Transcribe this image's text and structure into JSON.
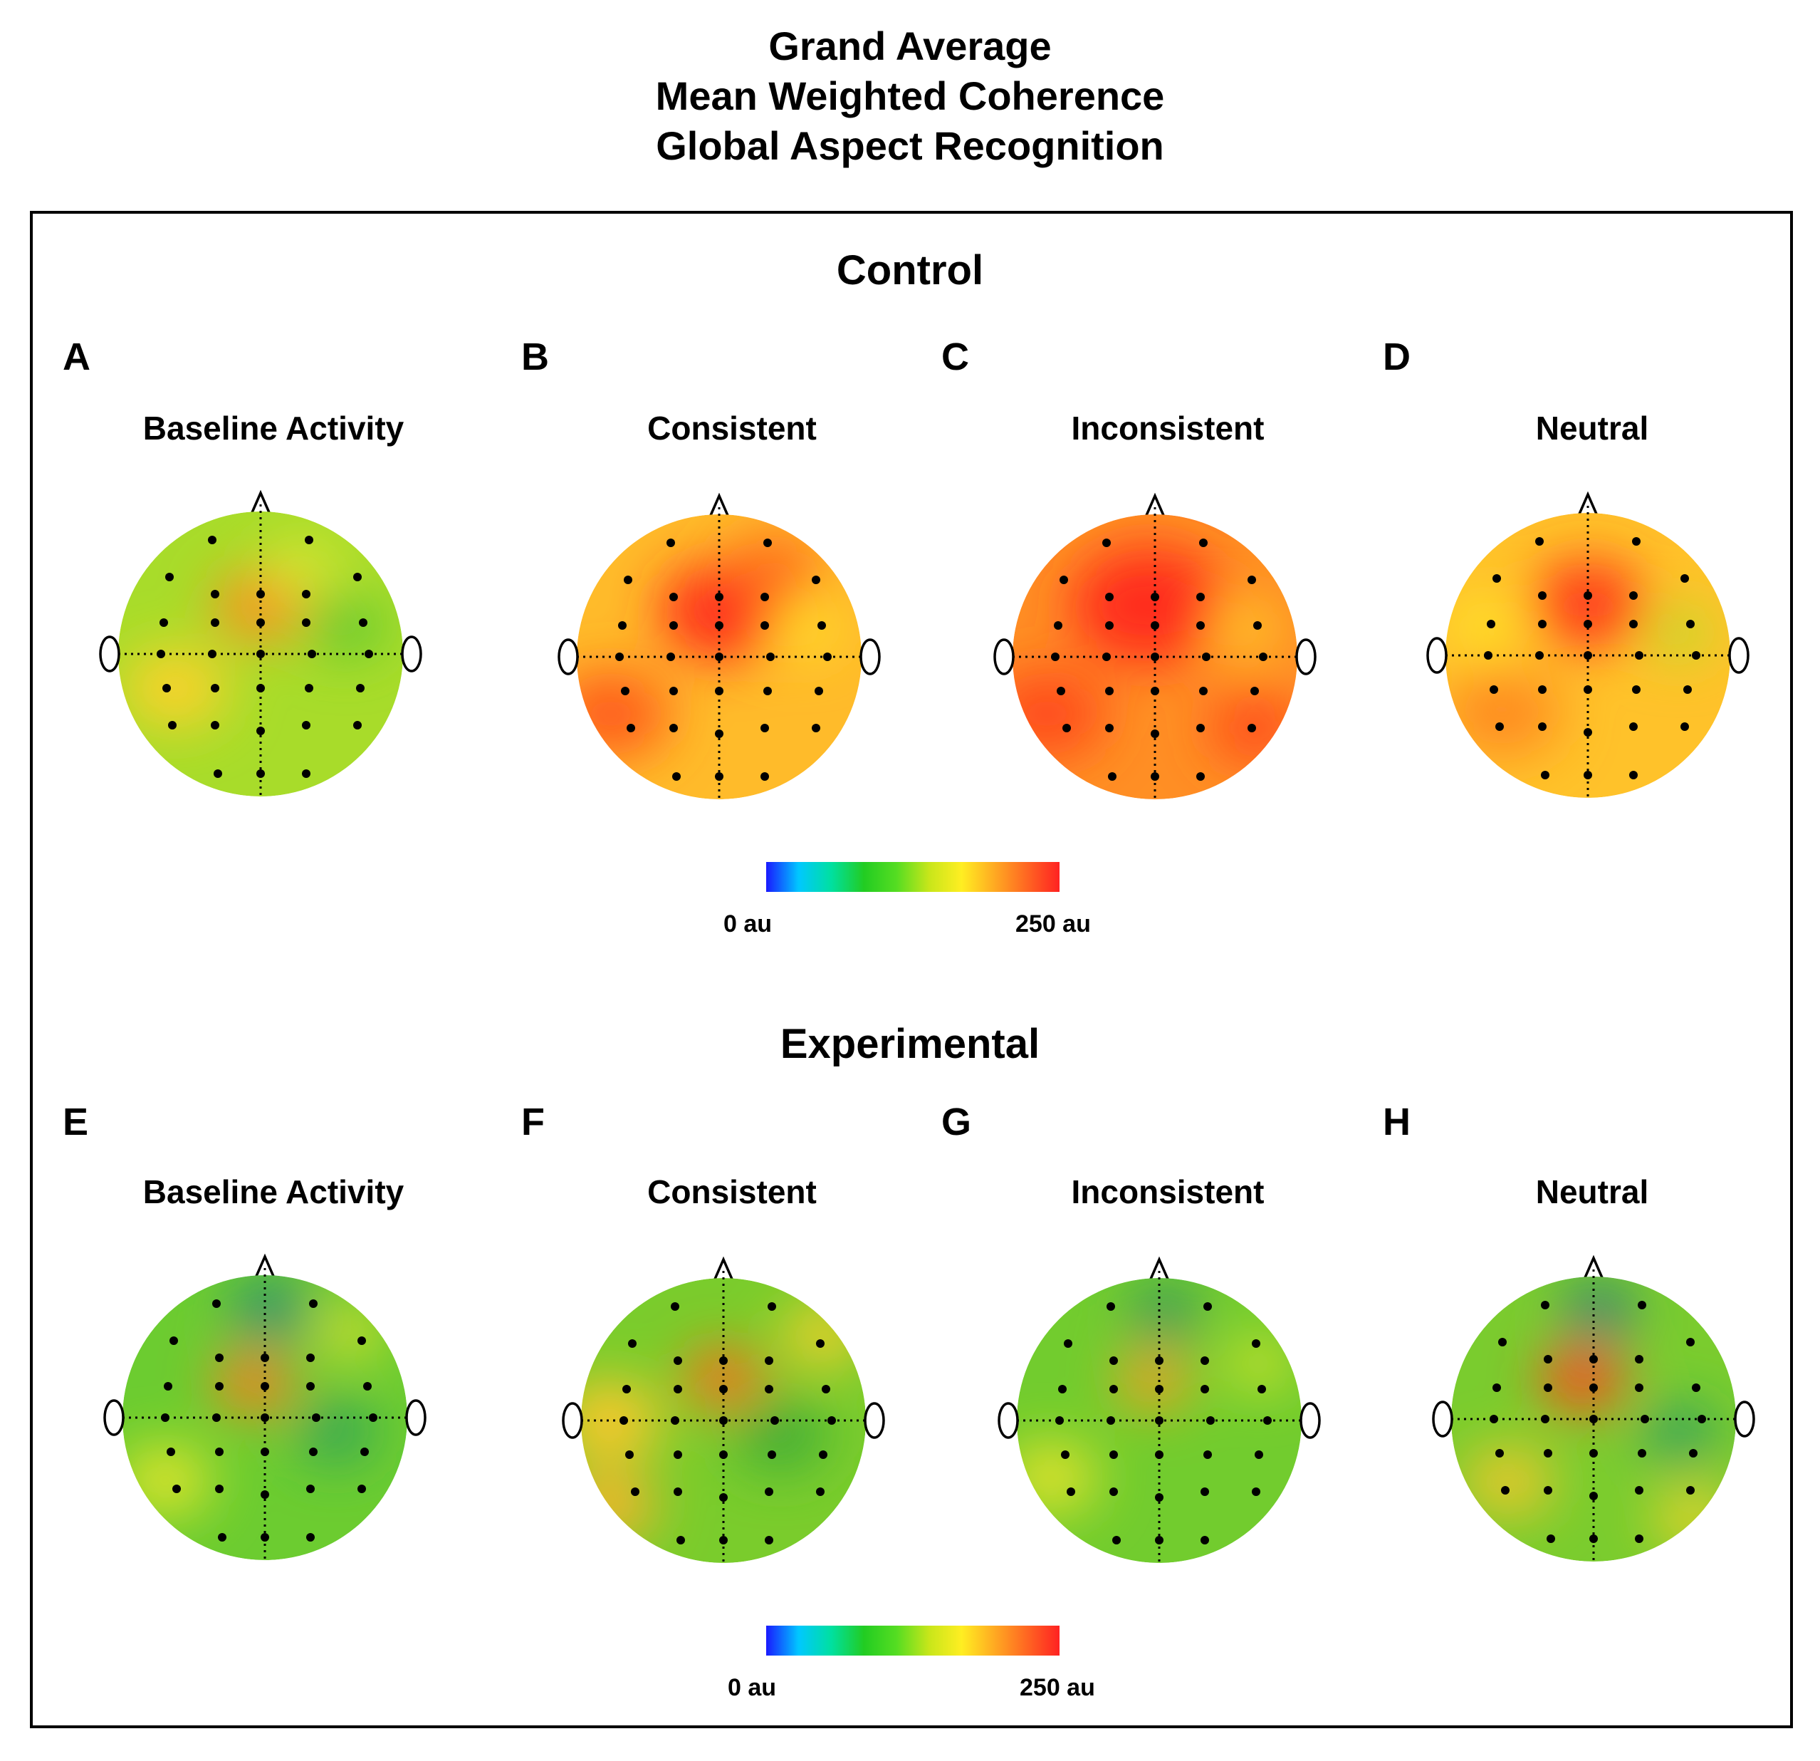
{
  "title_lines": [
    "Grand Average",
    "Mean Weighted Coherence",
    "Global Aspect Recognition"
  ],
  "groups": [
    {
      "name": "Control",
      "panels": [
        {
          "letter": "A",
          "label": "Baseline Activity"
        },
        {
          "letter": "B",
          "label": "Consistent"
        },
        {
          "letter": "C",
          "label": "Inconsistent"
        },
        {
          "letter": "D",
          "label": "Neutral"
        }
      ],
      "colorbar": {
        "min_label": "0 au",
        "max_label": "250 au"
      }
    },
    {
      "name": "Experimental",
      "panels": [
        {
          "letter": "E",
          "label": "Baseline Activity"
        },
        {
          "letter": "F",
          "label": "Consistent"
        },
        {
          "letter": "G",
          "label": "Inconsistent"
        },
        {
          "letter": "H",
          "label": "Neutral"
        }
      ],
      "colorbar": {
        "min_label": "0 au",
        "max_label": "250 au"
      }
    }
  ],
  "colormap": [
    "#1a1aff",
    "#00c8ff",
    "#00e0a0",
    "#22cc22",
    "#55dd22",
    "#c8e61a",
    "#ffee22",
    "#ffaa22",
    "#ff6622",
    "#ff2222"
  ],
  "headmap_colors": {
    "A": {
      "base": "#a8dc2a",
      "blobs": [
        [
          "#ff8c22",
          0.5,
          0.33,
          0.14
        ],
        [
          "#ffd22a",
          0.2,
          0.62,
          0.16
        ],
        [
          "#5cc832",
          0.8,
          0.4,
          0.12
        ],
        [
          "#d8e632",
          0.65,
          0.2,
          0.12
        ]
      ]
    },
    "B": {
      "base": "#ffbb2a",
      "blobs": [
        [
          "#ff2a1e",
          0.52,
          0.34,
          0.2
        ],
        [
          "#ff5a1e",
          0.12,
          0.7,
          0.18
        ],
        [
          "#ffe82a",
          0.8,
          0.4,
          0.1
        ],
        [
          "#ff6e1e",
          0.7,
          0.18,
          0.14
        ]
      ]
    },
    "C": {
      "base": "#ff8f24",
      "blobs": [
        [
          "#ff2a1e",
          0.48,
          0.32,
          0.24
        ],
        [
          "#ff4a1e",
          0.12,
          0.7,
          0.18
        ],
        [
          "#ffd82a",
          0.82,
          0.4,
          0.1
        ],
        [
          "#ff4a1e",
          0.85,
          0.75,
          0.14
        ]
      ]
    },
    "D": {
      "base": "#ffc22a",
      "blobs": [
        [
          "#ff3a1e",
          0.5,
          0.32,
          0.18
        ],
        [
          "#b8e02a",
          0.82,
          0.42,
          0.1
        ],
        [
          "#ff8a22",
          0.2,
          0.7,
          0.18
        ],
        [
          "#ffe42a",
          0.15,
          0.4,
          0.12
        ]
      ]
    },
    "E": {
      "base": "#6ccc30",
      "blobs": [
        [
          "#2a8a78",
          0.52,
          0.12,
          0.12
        ],
        [
          "#ff7a22",
          0.46,
          0.38,
          0.12
        ],
        [
          "#e6e62a",
          0.15,
          0.72,
          0.14
        ],
        [
          "#2fa05a",
          0.75,
          0.55,
          0.12
        ],
        [
          "#e6e02a",
          0.8,
          0.2,
          0.1
        ]
      ]
    },
    "F": {
      "base": "#7acc2c",
      "blobs": [
        [
          "#ff6a1e",
          0.5,
          0.35,
          0.12
        ],
        [
          "#ffc82a",
          0.1,
          0.5,
          0.16
        ],
        [
          "#ffd02a",
          0.85,
          0.2,
          0.12
        ],
        [
          "#ffb42a",
          0.1,
          0.8,
          0.14
        ],
        [
          "#3aaa38",
          0.7,
          0.55,
          0.14
        ]
      ]
    },
    "G": {
      "base": "#72cc2e",
      "blobs": [
        [
          "#2a8a6a",
          0.52,
          0.12,
          0.1
        ],
        [
          "#ff9a22",
          0.48,
          0.36,
          0.11
        ],
        [
          "#e8e42a",
          0.12,
          0.7,
          0.14
        ],
        [
          "#d8e42a",
          0.85,
          0.3,
          0.1
        ]
      ]
    },
    "H": {
      "base": "#7acc2e",
      "blobs": [
        [
          "#2a7a80",
          0.52,
          0.12,
          0.11
        ],
        [
          "#ff4a1e",
          0.46,
          0.36,
          0.13
        ],
        [
          "#2a9a66",
          0.8,
          0.55,
          0.11
        ],
        [
          "#f0c82a",
          0.2,
          0.72,
          0.14
        ],
        [
          "#f0d42a",
          0.85,
          0.85,
          0.12
        ]
      ]
    }
  }
}
